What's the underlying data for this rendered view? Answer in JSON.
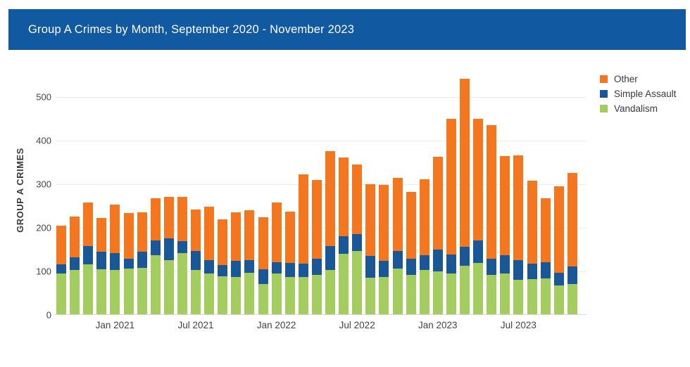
{
  "header": {
    "title": "Group A Crimes by Month, September 2020 - November 2023",
    "background": "#1159A0",
    "text_color": "#FFFFFF"
  },
  "chart_data": {
    "type": "bar",
    "stacked": true,
    "title": "Group A Crimes by Month, September 2020 - November 2023",
    "xlabel": "",
    "ylabel": "GROUP A CRIMES",
    "ylim": [
      0,
      545
    ],
    "yticks": [
      0,
      100,
      200,
      300,
      400,
      500
    ],
    "grid": true,
    "legend_position": "top-right",
    "categories": [
      "Sep 2020",
      "Oct 2020",
      "Nov 2020",
      "Dec 2020",
      "Jan 2021",
      "Feb 2021",
      "Mar 2021",
      "Apr 2021",
      "May 2021",
      "Jun 2021",
      "Jul 2021",
      "Aug 2021",
      "Sep 2021",
      "Oct 2021",
      "Nov 2021",
      "Dec 2021",
      "Jan 2022",
      "Feb 2022",
      "Mar 2022",
      "Apr 2022",
      "May 2022",
      "Jun 2022",
      "Jul 2022",
      "Aug 2022",
      "Sep 2022",
      "Oct 2022",
      "Nov 2022",
      "Dec 2022",
      "Jan 2023",
      "Feb 2023",
      "Mar 2023",
      "Apr 2023",
      "May 2023",
      "Jun 2023",
      "Jul 2023",
      "Aug 2023",
      "Sep 2023",
      "Oct 2023",
      "Nov 2023"
    ],
    "x_tick_labels": [
      "Jan 2021",
      "Jul 2021",
      "Jan 2022",
      "Jul 2022",
      "Jan 2023",
      "Jul 2023"
    ],
    "series": [
      {
        "name": "Vandalism",
        "color": "#A3CD5E",
        "values": [
          94,
          102,
          115,
          104,
          102,
          105,
          107,
          136,
          125,
          141,
          101,
          94,
          87,
          86,
          95,
          70,
          93,
          86,
          85,
          91,
          102,
          138,
          146,
          84,
          86,
          105,
          90,
          101,
          98,
          93,
          112,
          118,
          91,
          93,
          79,
          80,
          83,
          66,
          70
        ]
      },
      {
        "name": "Simple Assault",
        "color": "#1A5796",
        "values": [
          21,
          29,
          42,
          39,
          39,
          23,
          37,
          33,
          50,
          27,
          45,
          31,
          26,
          37,
          30,
          34,
          26,
          32,
          32,
          36,
          54,
          41,
          38,
          50,
          36,
          40,
          38,
          35,
          51,
          44,
          43,
          51,
          37,
          42,
          46,
          37,
          37,
          30,
          39
        ]
      },
      {
        "name": "Other",
        "color": "#F4771F",
        "values": [
          89,
          94,
          100,
          78,
          111,
          105,
          90,
          97,
          95,
          101,
          95,
          122,
          105,
          111,
          114,
          118,
          138,
          117,
          204,
          182,
          218,
          181,
          160,
          164,
          175,
          168,
          153,
          174,
          213,
          312,
          385,
          279,
          306,
          228,
          239,
          189,
          147,
          198,
          215
        ]
      }
    ],
    "legend": [
      {
        "label": "Other",
        "color": "#F4771F"
      },
      {
        "label": "Simple Assault",
        "color": "#1A5796"
      },
      {
        "label": "Vandalism",
        "color": "#A3CD5E"
      }
    ]
  }
}
